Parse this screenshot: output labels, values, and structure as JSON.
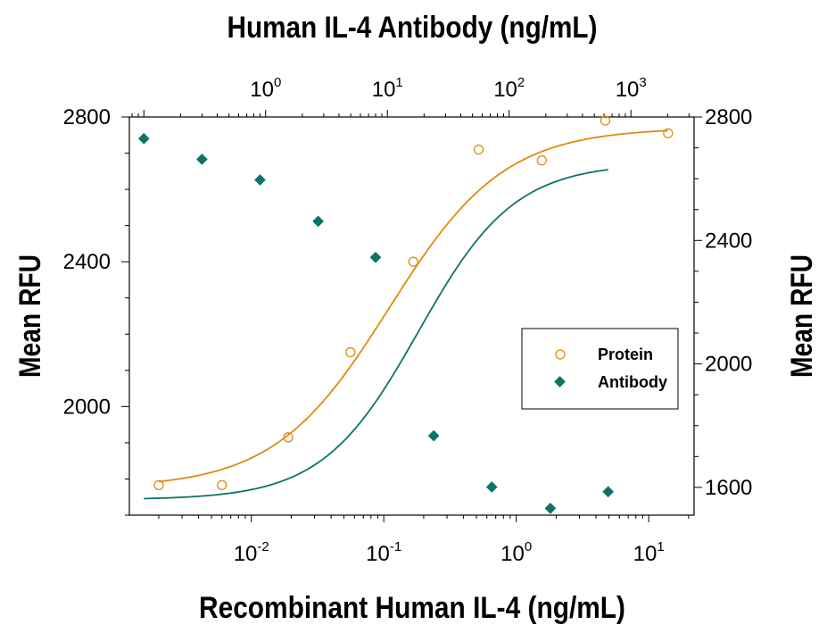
{
  "chart_data": {
    "type": "scatter",
    "title": "",
    "top_xlabel": "Human IL-4 Antibody (ng/mL)",
    "bottom_xlabel": "Recombinant Human IL-4 (ng/mL)",
    "left_ylabel": "Mean RFU",
    "right_ylabel": "Mean RFU",
    "bottom_xscale": "log",
    "bottom_xlim": [
      0.0012,
      22
    ],
    "bottom_xticks": [
      {
        "value": 0.01,
        "label": "10",
        "exp": "-2"
      },
      {
        "value": 0.1,
        "label": "10",
        "exp": "-1"
      },
      {
        "value": 1,
        "label": "10",
        "exp": "0"
      },
      {
        "value": 10,
        "label": "10",
        "exp": "1"
      }
    ],
    "top_xscale": "log",
    "top_xlim": [
      0.076,
      3300
    ],
    "top_xticks": [
      {
        "value": 1,
        "label": "10",
        "exp": "0"
      },
      {
        "value": 10,
        "label": "10",
        "exp": "1"
      },
      {
        "value": 100,
        "label": "10",
        "exp": "2"
      },
      {
        "value": 1000,
        "label": "10",
        "exp": "3"
      }
    ],
    "left_ylim": [
      1700,
      2800
    ],
    "left_yticks": [
      2000,
      2400,
      2800
    ],
    "right_ylim": [
      1510,
      2800
    ],
    "right_yticks": [
      1600,
      2000,
      2400,
      2800
    ],
    "grid": false,
    "legend": {
      "position": "center-right",
      "entries": [
        "Protein",
        "Antibody"
      ]
    },
    "series": [
      {
        "name": "Protein",
        "axis": "bottom-left",
        "marker": "open-circle",
        "color": "#E08A0F",
        "x": [
          0.002,
          0.006,
          0.019,
          0.056,
          0.167,
          0.52,
          1.56,
          4.7,
          14
        ],
        "y": [
          1783,
          1783,
          1915,
          2150,
          2400,
          2710,
          2680,
          2790,
          2755
        ],
        "fit": {
          "bottom": 1775,
          "top": 2770,
          "ec50": 0.11,
          "hill": 1.0
        }
      },
      {
        "name": "Antibody",
        "axis": "top-right",
        "marker": "filled-diamond",
        "color": "#0E7468",
        "x": [
          0.1,
          0.3,
          0.9,
          2.7,
          8,
          24,
          72,
          218,
          650
        ],
        "y": [
          2730,
          2663,
          2596,
          2462,
          2345,
          1767,
          1601,
          1532,
          1586
        ],
        "fit": {
          "top": 2650,
          "bottom": 1560,
          "ec50": 18,
          "hill": 1.1
        }
      }
    ]
  }
}
